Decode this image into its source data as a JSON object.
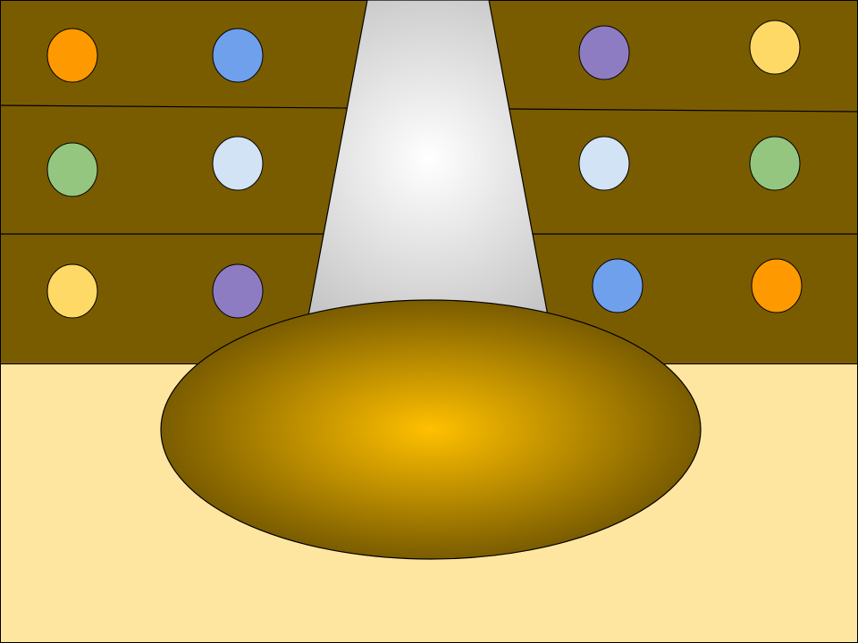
{
  "colors": {
    "wall": "#7a5c00",
    "floor": "#ffe6a0",
    "outline": "#000000",
    "spotlight_center": "#ffffff",
    "spotlight_edge": "#bdbdbd",
    "stage_center": "#ffc000",
    "stage_edge": "#7a5c00"
  },
  "shelves": {
    "left": [
      [
        "#ff9900",
        "#6fa0ec"
      ],
      [
        "#94c680",
        "#d1e3f5"
      ],
      [
        "#ffd966",
        "#8e7cc3"
      ]
    ],
    "right": [
      [
        "#8e7cc3",
        "#ffd966"
      ],
      [
        "#d1e3f5",
        "#94c680"
      ],
      [
        "#6fa0ec",
        "#ff9900"
      ]
    ]
  }
}
